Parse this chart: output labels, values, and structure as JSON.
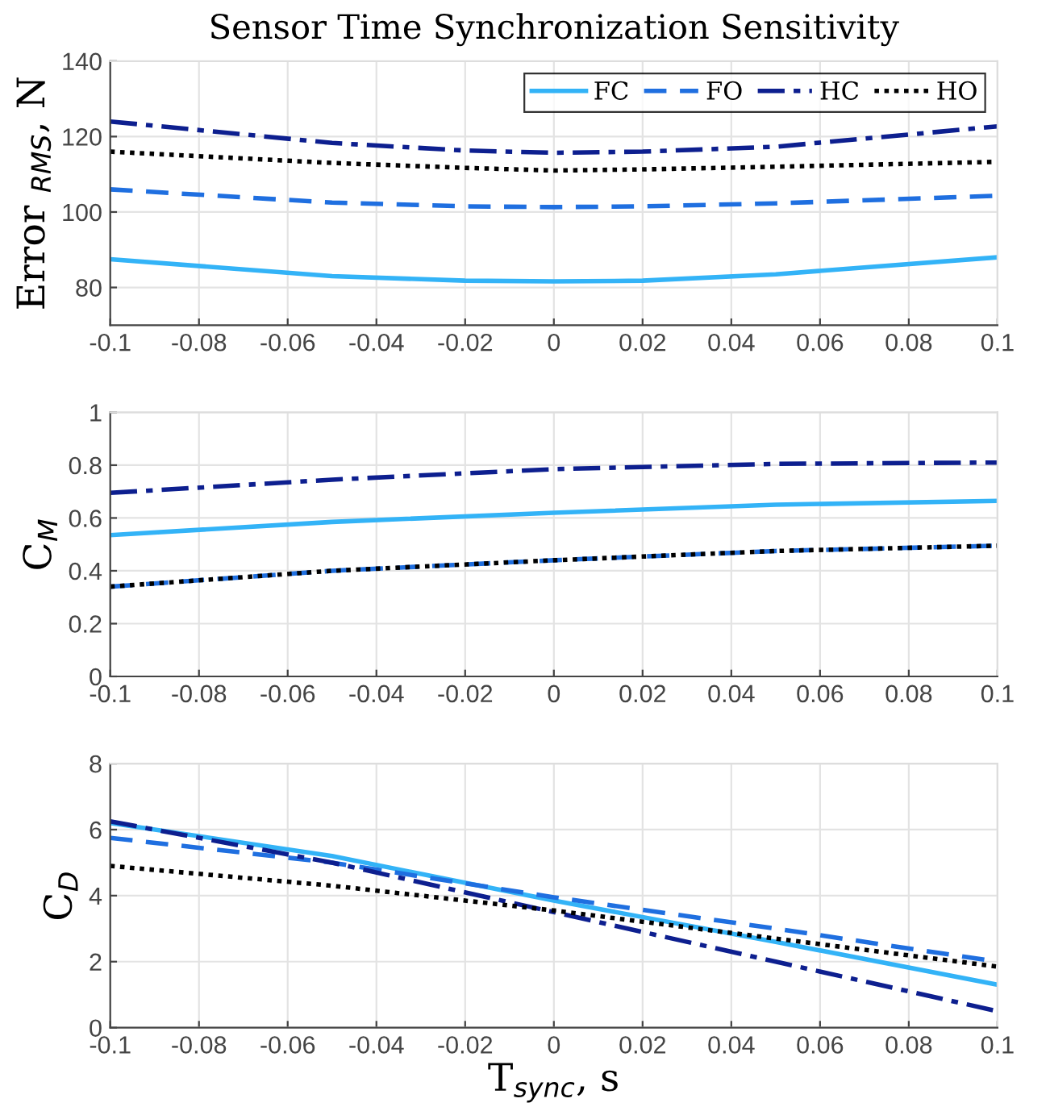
{
  "chart_data": [
    {
      "type": "line",
      "title": "Sensor Time Synchronization Sensitivity",
      "ylabel": "Error $_{RMS}$, N",
      "xlim": [
        -0.1,
        0.1
      ],
      "xticks": [
        -0.1,
        -0.08,
        -0.06,
        -0.04,
        -0.02,
        0,
        0.02,
        0.04,
        0.06,
        0.08,
        0.1
      ],
      "ylim": [
        70,
        140
      ],
      "yticks": [
        80,
        100,
        120,
        140
      ],
      "grid": true,
      "legend": "top right",
      "x": [
        -0.1,
        -0.05,
        -0.02,
        0,
        0.02,
        0.05,
        0.1
      ],
      "series": [
        {
          "name": "FC",
          "color": "#33b3f7",
          "line_style": "solid",
          "values": [
            87.5,
            83,
            81.8,
            81.6,
            81.8,
            83.5,
            88
          ]
        },
        {
          "name": "FO",
          "color": "#1f6fe0",
          "line_style": "dashed",
          "values": [
            106,
            102.5,
            101.5,
            101.3,
            101.5,
            102.3,
            104.3
          ]
        },
        {
          "name": "HC",
          "color": "#0d1f8f",
          "line_style": "dashdot",
          "values": [
            124,
            118.3,
            116.3,
            115.7,
            116,
            117.3,
            122.7
          ]
        },
        {
          "name": "HO",
          "color": "#000000",
          "line_style": "dotted",
          "values": [
            116,
            113,
            111.7,
            111,
            111.3,
            112,
            113.3
          ]
        }
      ]
    },
    {
      "type": "line",
      "ylabel": "C$_{M}$",
      "xlim": [
        -0.1,
        0.1
      ],
      "xticks": [
        -0.1,
        -0.08,
        -0.06,
        -0.04,
        -0.02,
        0,
        0.02,
        0.04,
        0.06,
        0.08,
        0.1
      ],
      "ylim": [
        0,
        1
      ],
      "yticks": [
        0,
        0.2,
        0.4,
        0.6,
        0.8,
        1
      ],
      "grid": true,
      "x": [
        -0.1,
        -0.05,
        0,
        0.05,
        0.1
      ],
      "series": [
        {
          "color": "#33b3f7",
          "line_style": "solid",
          "values": [
            0.535,
            0.585,
            0.62,
            0.65,
            0.665
          ]
        },
        {
          "color": "#1f6fe0",
          "line_style": "dashed",
          "values": [
            0.34,
            0.4,
            0.44,
            0.475,
            0.495
          ]
        },
        {
          "color": "#0d1f8f",
          "line_style": "dashdot",
          "values": [
            0.695,
            0.745,
            0.785,
            0.805,
            0.81
          ]
        },
        {
          "color": "#000000",
          "line_style": "dotted",
          "values": [
            0.34,
            0.4,
            0.44,
            0.475,
            0.495
          ]
        }
      ]
    },
    {
      "type": "line",
      "ylabel": "C$_{D}$",
      "xlabel": "T$_{sync}$, s",
      "xlim": [
        -0.1,
        0.1
      ],
      "xticks": [
        -0.1,
        -0.08,
        -0.06,
        -0.04,
        -0.02,
        0,
        0.02,
        0.04,
        0.06,
        0.08,
        0.1
      ],
      "ylim": [
        0,
        8
      ],
      "yticks": [
        0,
        2,
        4,
        6,
        8
      ],
      "grid": true,
      "x": [
        -0.1,
        -0.05,
        0,
        0.05,
        0.1
      ],
      "series": [
        {
          "color": "#33b3f7",
          "line_style": "solid",
          "values": [
            6.2,
            5.2,
            3.85,
            2.6,
            1.3
          ]
        },
        {
          "color": "#1f6fe0",
          "line_style": "dashed",
          "values": [
            5.75,
            5.0,
            3.95,
            3.0,
            2.0
          ]
        },
        {
          "color": "#0d1f8f",
          "line_style": "dashdot",
          "values": [
            6.25,
            5.0,
            3.5,
            2.0,
            0.5
          ]
        },
        {
          "color": "#000000",
          "line_style": "dotted",
          "values": [
            4.9,
            4.3,
            3.55,
            2.7,
            1.85
          ]
        }
      ]
    }
  ]
}
